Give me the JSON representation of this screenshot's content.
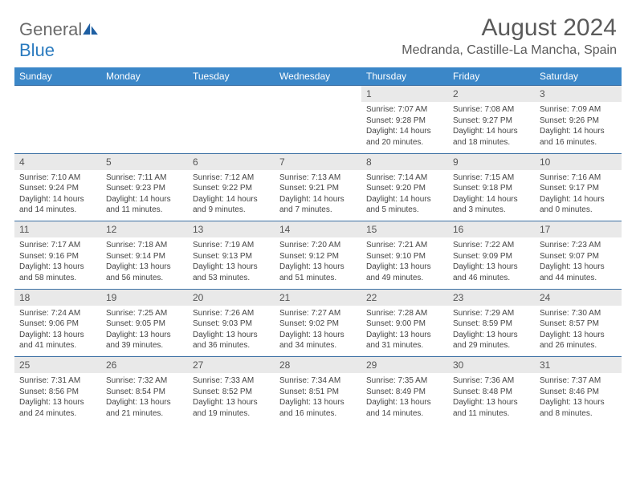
{
  "brand": {
    "name_part1": "General",
    "name_part2": "Blue",
    "icon_color": "#1e5fa3"
  },
  "header": {
    "title": "August 2024",
    "location": "Medranda, Castille-La Mancha, Spain"
  },
  "colors": {
    "header_bg": "#3b87c8",
    "header_text": "#ffffff",
    "daynum_bg": "#e9e9e9",
    "row_border": "#3b6fa3",
    "text": "#404040"
  },
  "weekdays": [
    "Sunday",
    "Monday",
    "Tuesday",
    "Wednesday",
    "Thursday",
    "Friday",
    "Saturday"
  ],
  "weeks": [
    [
      null,
      null,
      null,
      null,
      {
        "n": "1",
        "sr": "7:07 AM",
        "ss": "9:28 PM",
        "dh": "14",
        "dm": "20"
      },
      {
        "n": "2",
        "sr": "7:08 AM",
        "ss": "9:27 PM",
        "dh": "14",
        "dm": "18"
      },
      {
        "n": "3",
        "sr": "7:09 AM",
        "ss": "9:26 PM",
        "dh": "14",
        "dm": "16"
      }
    ],
    [
      {
        "n": "4",
        "sr": "7:10 AM",
        "ss": "9:24 PM",
        "dh": "14",
        "dm": "14"
      },
      {
        "n": "5",
        "sr": "7:11 AM",
        "ss": "9:23 PM",
        "dh": "14",
        "dm": "11"
      },
      {
        "n": "6",
        "sr": "7:12 AM",
        "ss": "9:22 PM",
        "dh": "14",
        "dm": "9"
      },
      {
        "n": "7",
        "sr": "7:13 AM",
        "ss": "9:21 PM",
        "dh": "14",
        "dm": "7"
      },
      {
        "n": "8",
        "sr": "7:14 AM",
        "ss": "9:20 PM",
        "dh": "14",
        "dm": "5"
      },
      {
        "n": "9",
        "sr": "7:15 AM",
        "ss": "9:18 PM",
        "dh": "14",
        "dm": "3"
      },
      {
        "n": "10",
        "sr": "7:16 AM",
        "ss": "9:17 PM",
        "dh": "14",
        "dm": "0"
      }
    ],
    [
      {
        "n": "11",
        "sr": "7:17 AM",
        "ss": "9:16 PM",
        "dh": "13",
        "dm": "58"
      },
      {
        "n": "12",
        "sr": "7:18 AM",
        "ss": "9:14 PM",
        "dh": "13",
        "dm": "56"
      },
      {
        "n": "13",
        "sr": "7:19 AM",
        "ss": "9:13 PM",
        "dh": "13",
        "dm": "53"
      },
      {
        "n": "14",
        "sr": "7:20 AM",
        "ss": "9:12 PM",
        "dh": "13",
        "dm": "51"
      },
      {
        "n": "15",
        "sr": "7:21 AM",
        "ss": "9:10 PM",
        "dh": "13",
        "dm": "49"
      },
      {
        "n": "16",
        "sr": "7:22 AM",
        "ss": "9:09 PM",
        "dh": "13",
        "dm": "46"
      },
      {
        "n": "17",
        "sr": "7:23 AM",
        "ss": "9:07 PM",
        "dh": "13",
        "dm": "44"
      }
    ],
    [
      {
        "n": "18",
        "sr": "7:24 AM",
        "ss": "9:06 PM",
        "dh": "13",
        "dm": "41"
      },
      {
        "n": "19",
        "sr": "7:25 AM",
        "ss": "9:05 PM",
        "dh": "13",
        "dm": "39"
      },
      {
        "n": "20",
        "sr": "7:26 AM",
        "ss": "9:03 PM",
        "dh": "13",
        "dm": "36"
      },
      {
        "n": "21",
        "sr": "7:27 AM",
        "ss": "9:02 PM",
        "dh": "13",
        "dm": "34"
      },
      {
        "n": "22",
        "sr": "7:28 AM",
        "ss": "9:00 PM",
        "dh": "13",
        "dm": "31"
      },
      {
        "n": "23",
        "sr": "7:29 AM",
        "ss": "8:59 PM",
        "dh": "13",
        "dm": "29"
      },
      {
        "n": "24",
        "sr": "7:30 AM",
        "ss": "8:57 PM",
        "dh": "13",
        "dm": "26"
      }
    ],
    [
      {
        "n": "25",
        "sr": "7:31 AM",
        "ss": "8:56 PM",
        "dh": "13",
        "dm": "24"
      },
      {
        "n": "26",
        "sr": "7:32 AM",
        "ss": "8:54 PM",
        "dh": "13",
        "dm": "21"
      },
      {
        "n": "27",
        "sr": "7:33 AM",
        "ss": "8:52 PM",
        "dh": "13",
        "dm": "19"
      },
      {
        "n": "28",
        "sr": "7:34 AM",
        "ss": "8:51 PM",
        "dh": "13",
        "dm": "16"
      },
      {
        "n": "29",
        "sr": "7:35 AM",
        "ss": "8:49 PM",
        "dh": "13",
        "dm": "14"
      },
      {
        "n": "30",
        "sr": "7:36 AM",
        "ss": "8:48 PM",
        "dh": "13",
        "dm": "11"
      },
      {
        "n": "31",
        "sr": "7:37 AM",
        "ss": "8:46 PM",
        "dh": "13",
        "dm": "8"
      }
    ]
  ],
  "labels": {
    "sunrise": "Sunrise:",
    "sunset": "Sunset:",
    "daylight": "Daylight:",
    "hours": "hours",
    "and": "and",
    "minutes": "minutes."
  }
}
